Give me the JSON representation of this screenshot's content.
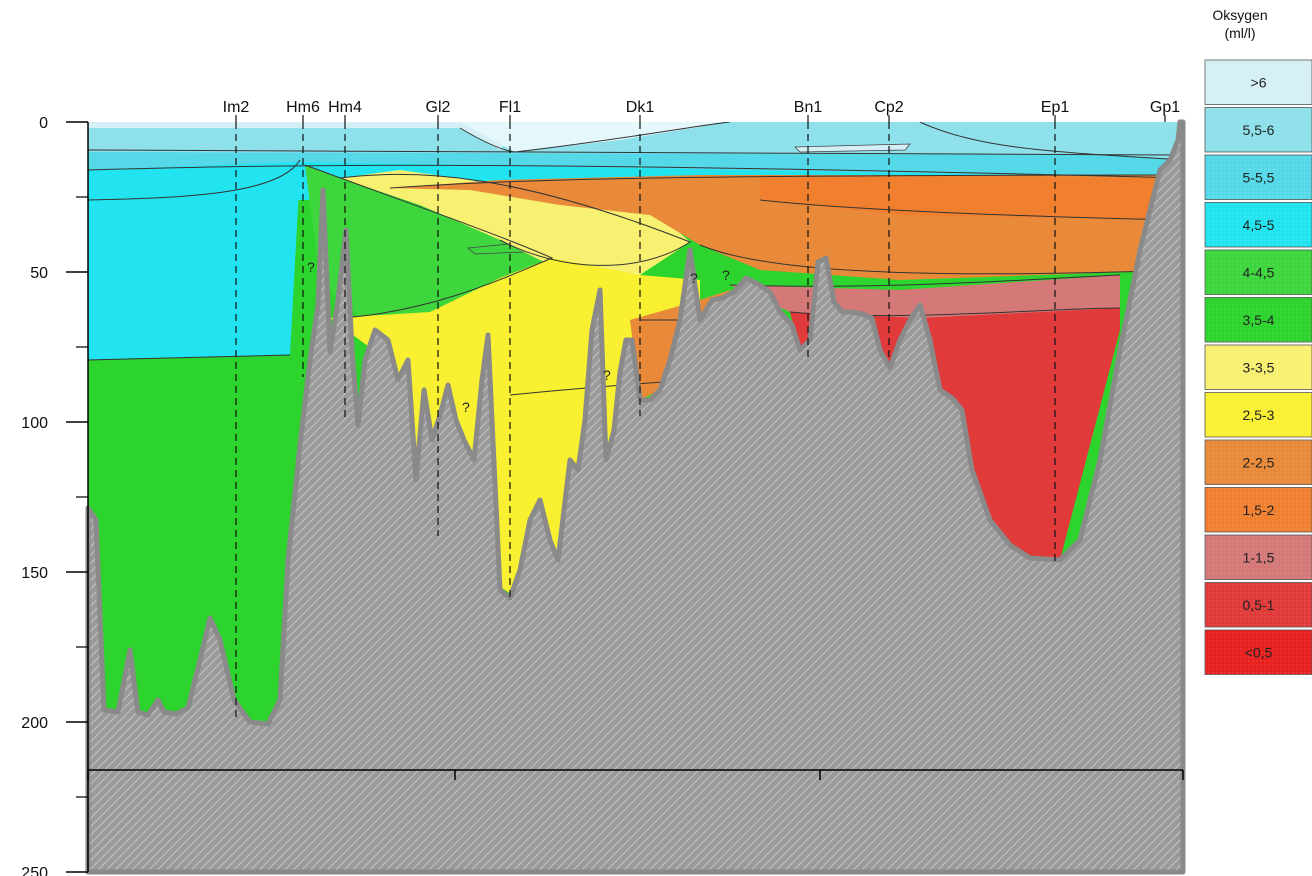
{
  "chart_data": {
    "type": "area",
    "title": "",
    "xlabel": "",
    "ylabel": "",
    "ylim": [
      0,
      250
    ],
    "y_inverted": true,
    "yticks": [
      0,
      50,
      100,
      150,
      200,
      250
    ],
    "legend": {
      "title_line1": "Oksygen",
      "title_line2": "(ml/l)",
      "placement": "right",
      "classes": [
        {
          "label": ">6",
          "color": "#d4f0f6"
        },
        {
          "label": "5,5-6",
          "color": "#8ee0ea"
        },
        {
          "label": "5-5,5",
          "color": "#55d8e8"
        },
        {
          "label": "4,5-5",
          "color": "#22e4f0"
        },
        {
          "label": "4-4,5",
          "color": "#3dd63d"
        },
        {
          "label": "3,5-4",
          "color": "#2ed42e"
        },
        {
          "label": "3-3,5",
          "color": "#f8f070"
        },
        {
          "label": "2,5-3",
          "color": "#f8f030"
        },
        {
          "label": "2-2,5",
          "color": "#e88a3a"
        },
        {
          "label": "1,5-2",
          "color": "#f08030"
        },
        {
          "label": "1-1,5",
          "color": "#d47878"
        },
        {
          "label": "0,5-1",
          "color": "#e03a3a"
        },
        {
          "label": "<0,5",
          "color": "#e82020"
        }
      ]
    },
    "stations": [
      {
        "name": "Im2",
        "bottom_depth": 200
      },
      {
        "name": "Hm6",
        "bottom_depth": 85
      },
      {
        "name": "Hm4",
        "bottom_depth": 100
      },
      {
        "name": "Gl2",
        "bottom_depth": 138
      },
      {
        "name": "Fl1",
        "bottom_depth": 160
      },
      {
        "name": "Dk1",
        "bottom_depth": 98
      },
      {
        "name": "Bn1",
        "bottom_depth": 80
      },
      {
        "name": "Cp2",
        "bottom_depth": 80
      },
      {
        "name": "Ep1",
        "bottom_depth": 148
      },
      {
        "name": "Gp1",
        "bottom_depth": 0
      }
    ],
    "annotations": [
      "?",
      "?",
      "?",
      "?",
      "?"
    ]
  }
}
